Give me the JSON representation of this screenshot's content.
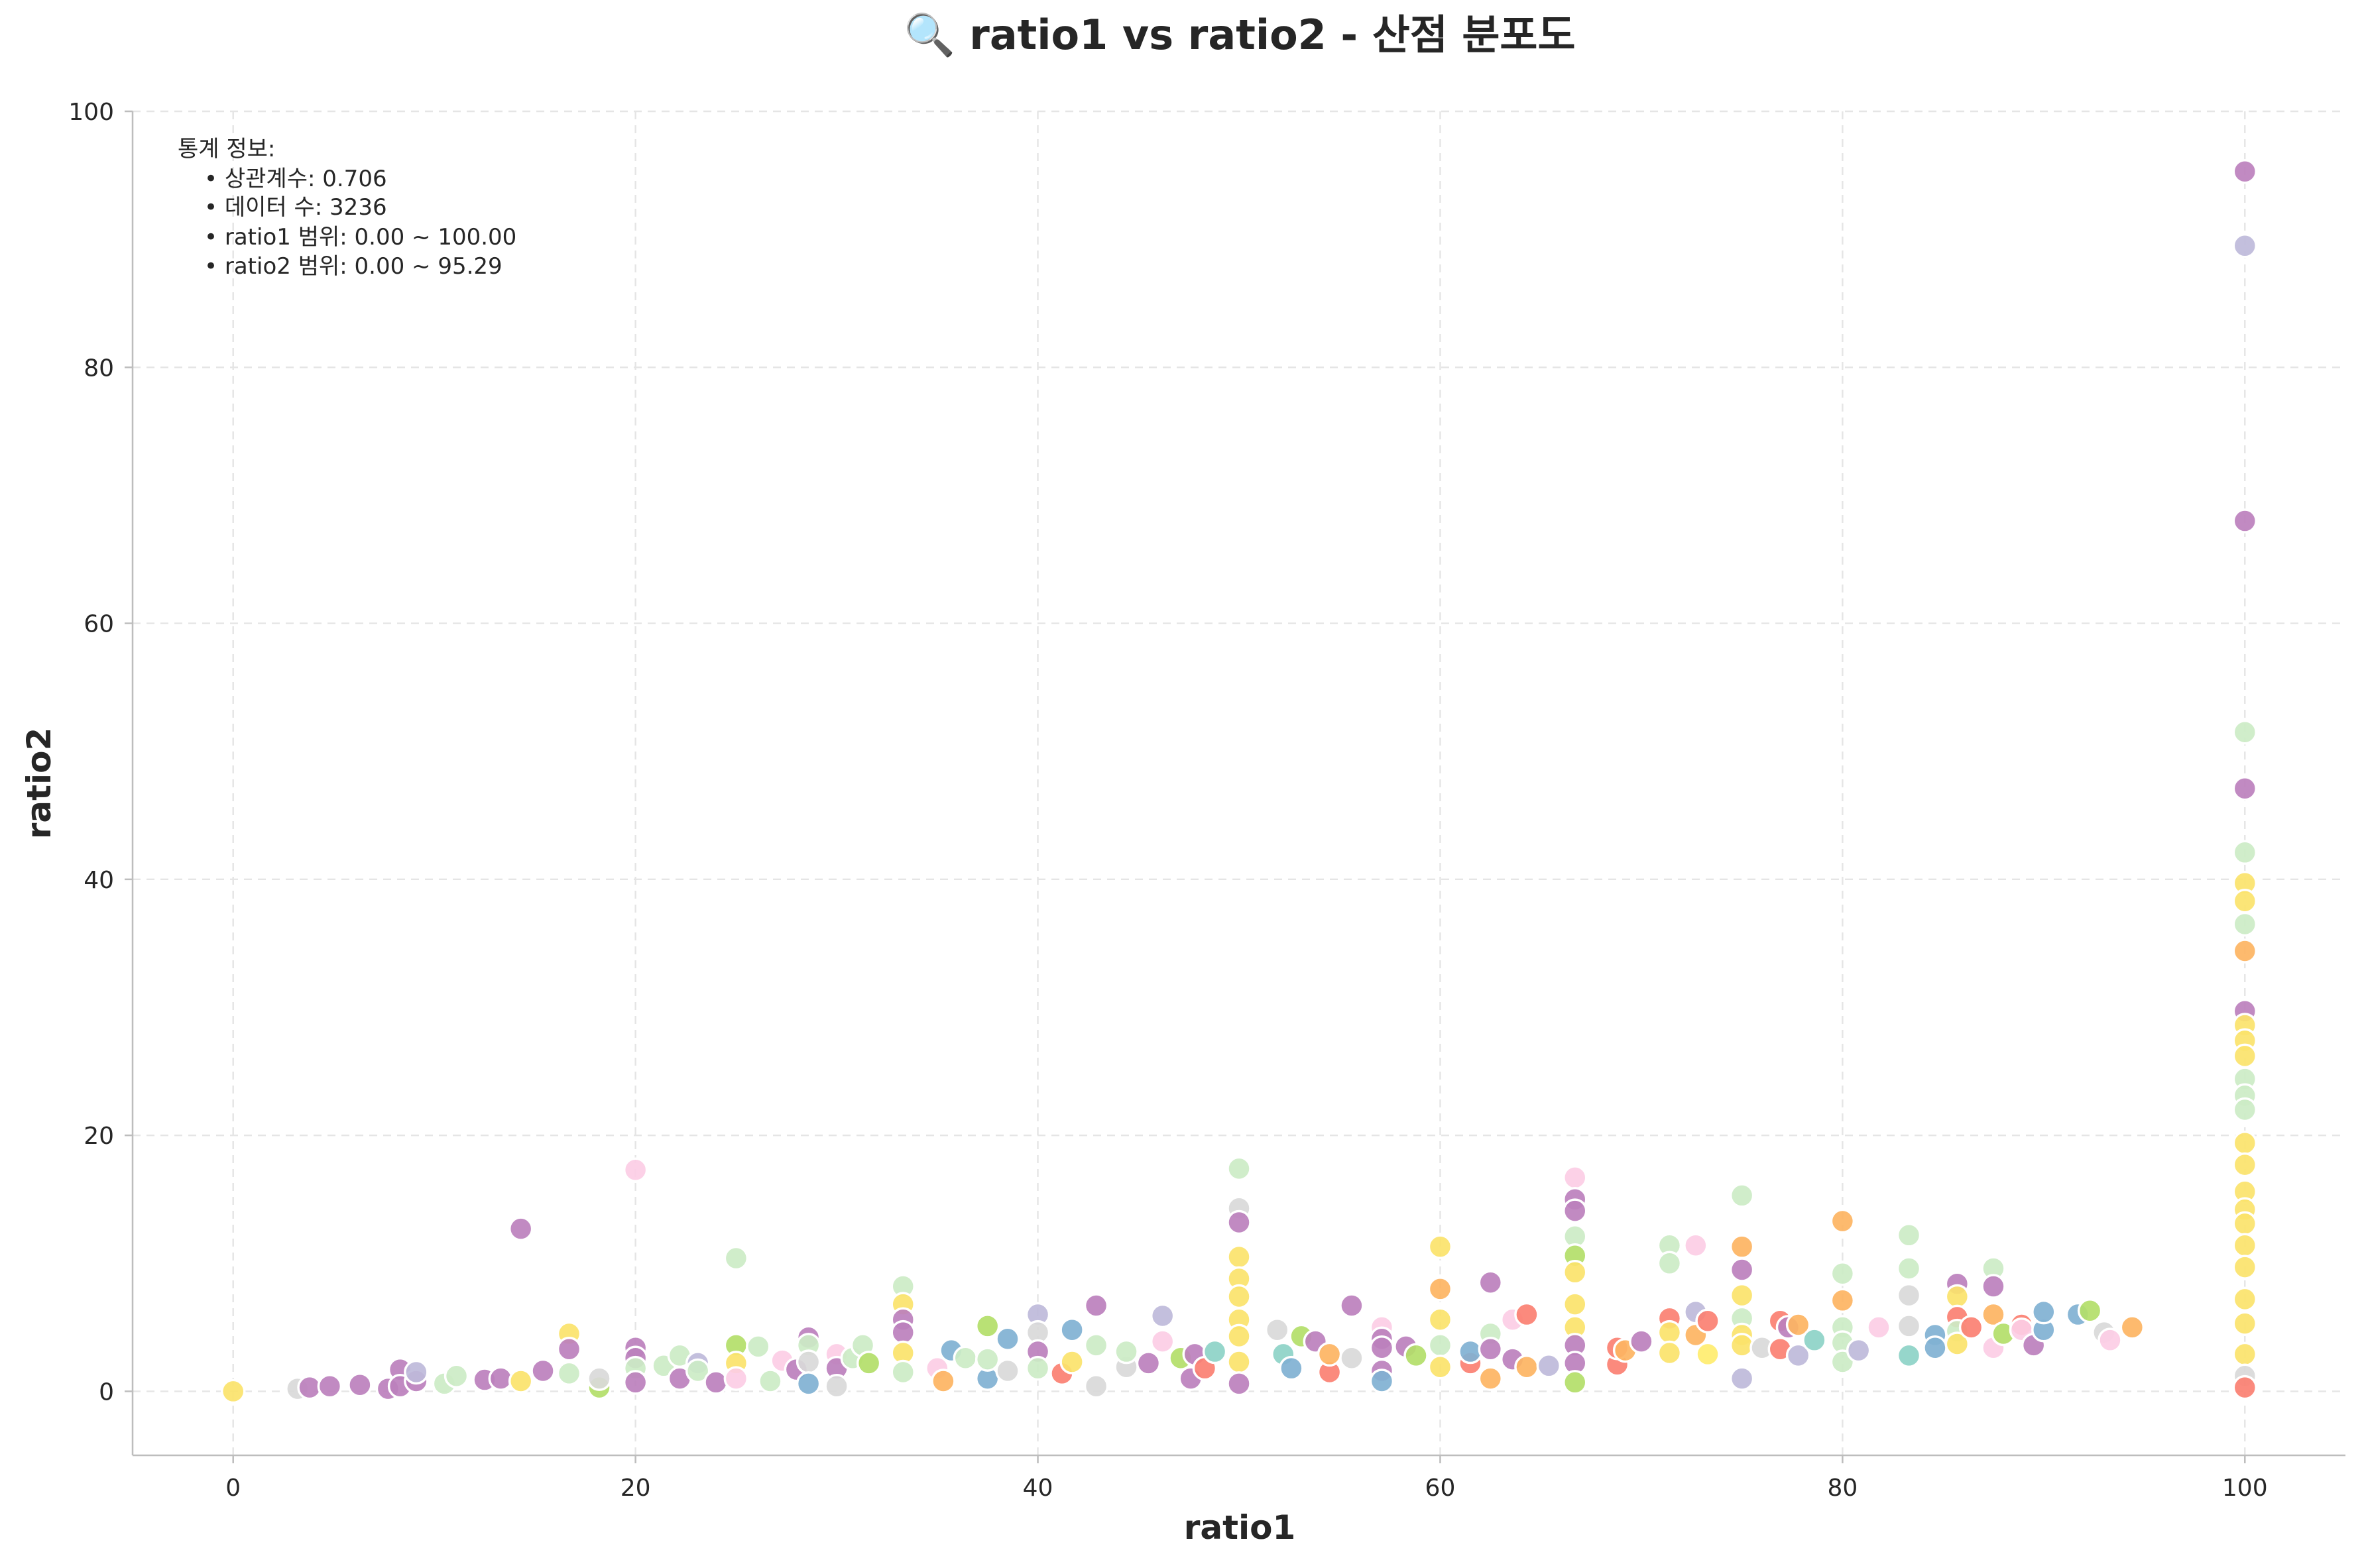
{
  "chart_data": {
    "type": "scatter",
    "title": "🔍 ratio1 vs ratio2 - 산점 분포도",
    "xlabel": "ratio1",
    "ylabel": "ratio2",
    "xlim": [
      -5,
      105
    ],
    "ylim": [
      -5,
      100
    ],
    "xticks": [
      0,
      20,
      40,
      60,
      80,
      100
    ],
    "yticks": [
      0,
      20,
      40,
      60,
      80,
      100
    ],
    "grid": true,
    "stats": {
      "heading": "통계 정보:",
      "lines": [
        "• 상관계수: 0.706",
        "• 데이터 수: 3236",
        "• ratio1 범위: 0.00 ~ 100.00",
        "• ratio2 범위: 0.00 ~ 95.29"
      ]
    },
    "palette": [
      "#8dd3c7",
      "#fbe36b",
      "#bebada",
      "#fb8072",
      "#80b1d3",
      "#fdb462",
      "#b3de69",
      "#fccde5",
      "#d9d9d9",
      "#bc80bd",
      "#ccebc5",
      "#ffed6f"
    ],
    "points": [
      {
        "x": 0,
        "y": 0,
        "color": "#fbe36b"
      },
      {
        "x": 3.2,
        "y": 0.2,
        "color": "#d9d9d9"
      },
      {
        "x": 3.8,
        "y": 0.3,
        "color": "#bc80bd"
      },
      {
        "x": 4.8,
        "y": 0.4,
        "color": "#bc80bd"
      },
      {
        "x": 6.3,
        "y": 0.5,
        "color": "#bc80bd"
      },
      {
        "x": 7.7,
        "y": 0.2,
        "color": "#bc80bd"
      },
      {
        "x": 8.3,
        "y": 1.7,
        "color": "#bc80bd"
      },
      {
        "x": 8.3,
        "y": 0.4,
        "color": "#bc80bd"
      },
      {
        "x": 9.1,
        "y": 0.8,
        "color": "#bc80bd"
      },
      {
        "x": 9.1,
        "y": 1.5,
        "color": "#bebada"
      },
      {
        "x": 10.5,
        "y": 0.6,
        "color": "#ccebc5"
      },
      {
        "x": 11.1,
        "y": 1.2,
        "color": "#ccebc5"
      },
      {
        "x": 12.5,
        "y": 0.9,
        "color": "#bc80bd"
      },
      {
        "x": 13.3,
        "y": 1.0,
        "color": "#bc80bd"
      },
      {
        "x": 14.3,
        "y": 12.7,
        "color": "#bc80bd"
      },
      {
        "x": 14.3,
        "y": 0.8,
        "color": "#fbe36b"
      },
      {
        "x": 15.4,
        "y": 1.6,
        "color": "#bc80bd"
      },
      {
        "x": 16.7,
        "y": 4.5,
        "color": "#fbe36b"
      },
      {
        "x": 16.7,
        "y": 3.3,
        "color": "#bc80bd"
      },
      {
        "x": 16.7,
        "y": 1.4,
        "color": "#ccebc5"
      },
      {
        "x": 18.2,
        "y": 0.3,
        "color": "#b3de69"
      },
      {
        "x": 18.2,
        "y": 1.0,
        "color": "#d9d9d9"
      },
      {
        "x": 20,
        "y": 17.3,
        "color": "#fccde5"
      },
      {
        "x": 20,
        "y": 3.4,
        "color": "#bc80bd"
      },
      {
        "x": 20,
        "y": 2.6,
        "color": "#bc80bd"
      },
      {
        "x": 20,
        "y": 1.8,
        "color": "#ccebc5"
      },
      {
        "x": 20,
        "y": 0.7,
        "color": "#bc80bd"
      },
      {
        "x": 21.4,
        "y": 2.0,
        "color": "#ccebc5"
      },
      {
        "x": 22.2,
        "y": 2.8,
        "color": "#ccebc5"
      },
      {
        "x": 22.2,
        "y": 1.0,
        "color": "#bc80bd"
      },
      {
        "x": 23.1,
        "y": 2.2,
        "color": "#bebada"
      },
      {
        "x": 23.1,
        "y": 1.6,
        "color": "#ccebc5"
      },
      {
        "x": 24.0,
        "y": 0.7,
        "color": "#bc80bd"
      },
      {
        "x": 25,
        "y": 10.4,
        "color": "#ccebc5"
      },
      {
        "x": 25,
        "y": 3.6,
        "color": "#b3de69"
      },
      {
        "x": 25,
        "y": 2.2,
        "color": "#fbe36b"
      },
      {
        "x": 25,
        "y": 1.0,
        "color": "#fccde5"
      },
      {
        "x": 26.1,
        "y": 3.5,
        "color": "#ccebc5"
      },
      {
        "x": 26.7,
        "y": 0.8,
        "color": "#ccebc5"
      },
      {
        "x": 27.3,
        "y": 2.4,
        "color": "#fccde5"
      },
      {
        "x": 28.0,
        "y": 1.7,
        "color": "#bc80bd"
      },
      {
        "x": 28.6,
        "y": 4.2,
        "color": "#bc80bd"
      },
      {
        "x": 28.6,
        "y": 3.6,
        "color": "#ccebc5"
      },
      {
        "x": 28.6,
        "y": 2.3,
        "color": "#d9d9d9"
      },
      {
        "x": 28.6,
        "y": 0.6,
        "color": "#80b1d3"
      },
      {
        "x": 30,
        "y": 2.9,
        "color": "#fccde5"
      },
      {
        "x": 30,
        "y": 1.8,
        "color": "#bc80bd"
      },
      {
        "x": 30,
        "y": 0.4,
        "color": "#d9d9d9"
      },
      {
        "x": 30.8,
        "y": 2.6,
        "color": "#ccebc5"
      },
      {
        "x": 31.3,
        "y": 3.6,
        "color": "#ccebc5"
      },
      {
        "x": 31.6,
        "y": 2.2,
        "color": "#b3de69"
      },
      {
        "x": 33.3,
        "y": 8.2,
        "color": "#ccebc5"
      },
      {
        "x": 33.3,
        "y": 6.8,
        "color": "#fbe36b"
      },
      {
        "x": 33.3,
        "y": 5.6,
        "color": "#bc80bd"
      },
      {
        "x": 33.3,
        "y": 4.6,
        "color": "#bc80bd"
      },
      {
        "x": 33.3,
        "y": 3.0,
        "color": "#fbe36b"
      },
      {
        "x": 33.3,
        "y": 1.5,
        "color": "#ccebc5"
      },
      {
        "x": 35.0,
        "y": 1.8,
        "color": "#fccde5"
      },
      {
        "x": 35.3,
        "y": 0.8,
        "color": "#fdb462"
      },
      {
        "x": 35.7,
        "y": 3.2,
        "color": "#80b1d3"
      },
      {
        "x": 36.4,
        "y": 2.6,
        "color": "#ccebc5"
      },
      {
        "x": 37.5,
        "y": 5.1,
        "color": "#b3de69"
      },
      {
        "x": 37.5,
        "y": 1.0,
        "color": "#80b1d3"
      },
      {
        "x": 37.5,
        "y": 2.5,
        "color": "#ccebc5"
      },
      {
        "x": 38.5,
        "y": 4.1,
        "color": "#80b1d3"
      },
      {
        "x": 38.5,
        "y": 1.6,
        "color": "#d9d9d9"
      },
      {
        "x": 40,
        "y": 6.0,
        "color": "#bebada"
      },
      {
        "x": 40,
        "y": 4.6,
        "color": "#d9d9d9"
      },
      {
        "x": 40,
        "y": 3.1,
        "color": "#bc80bd"
      },
      {
        "x": 40,
        "y": 1.8,
        "color": "#ccebc5"
      },
      {
        "x": 41.2,
        "y": 1.4,
        "color": "#fb8072"
      },
      {
        "x": 41.7,
        "y": 4.8,
        "color": "#80b1d3"
      },
      {
        "x": 41.7,
        "y": 2.3,
        "color": "#fbe36b"
      },
      {
        "x": 42.9,
        "y": 6.7,
        "color": "#bc80bd"
      },
      {
        "x": 42.9,
        "y": 3.6,
        "color": "#ccebc5"
      },
      {
        "x": 42.9,
        "y": 0.4,
        "color": "#d9d9d9"
      },
      {
        "x": 44.4,
        "y": 1.9,
        "color": "#d9d9d9"
      },
      {
        "x": 44.4,
        "y": 3.1,
        "color": "#ccebc5"
      },
      {
        "x": 45.5,
        "y": 2.2,
        "color": "#bc80bd"
      },
      {
        "x": 46.2,
        "y": 5.9,
        "color": "#bebada"
      },
      {
        "x": 46.2,
        "y": 3.9,
        "color": "#fccde5"
      },
      {
        "x": 47.1,
        "y": 2.6,
        "color": "#b3de69"
      },
      {
        "x": 47.6,
        "y": 1.0,
        "color": "#bc80bd"
      },
      {
        "x": 47.8,
        "y": 2.9,
        "color": "#bc80bd"
      },
      {
        "x": 48.3,
        "y": 1.8,
        "color": "#fb8072"
      },
      {
        "x": 48.8,
        "y": 3.1,
        "color": "#8dd3c7"
      },
      {
        "x": 50,
        "y": 17.4,
        "color": "#ccebc5"
      },
      {
        "x": 50,
        "y": 14.3,
        "color": "#d9d9d9"
      },
      {
        "x": 50,
        "y": 13.2,
        "color": "#bc80bd"
      },
      {
        "x": 50,
        "y": 10.5,
        "color": "#fbe36b"
      },
      {
        "x": 50,
        "y": 8.8,
        "color": "#fbe36b"
      },
      {
        "x": 50,
        "y": 7.4,
        "color": "#fbe36b"
      },
      {
        "x": 50,
        "y": 5.6,
        "color": "#fbe36b"
      },
      {
        "x": 50,
        "y": 4.3,
        "color": "#fbe36b"
      },
      {
        "x": 50,
        "y": 2.3,
        "color": "#fbe36b"
      },
      {
        "x": 50,
        "y": 0.6,
        "color": "#bc80bd"
      },
      {
        "x": 51.9,
        "y": 4.8,
        "color": "#d9d9d9"
      },
      {
        "x": 52.2,
        "y": 2.9,
        "color": "#8dd3c7"
      },
      {
        "x": 52.6,
        "y": 1.8,
        "color": "#80b1d3"
      },
      {
        "x": 53.1,
        "y": 4.3,
        "color": "#b3de69"
      },
      {
        "x": 53.8,
        "y": 3.9,
        "color": "#bc80bd"
      },
      {
        "x": 54.5,
        "y": 1.5,
        "color": "#fb8072"
      },
      {
        "x": 54.5,
        "y": 2.9,
        "color": "#fdb462"
      },
      {
        "x": 55.6,
        "y": 6.7,
        "color": "#bc80bd"
      },
      {
        "x": 55.6,
        "y": 2.6,
        "color": "#d9d9d9"
      },
      {
        "x": 57.1,
        "y": 5.0,
        "color": "#fccde5"
      },
      {
        "x": 57.1,
        "y": 4.1,
        "color": "#bc80bd"
      },
      {
        "x": 57.1,
        "y": 3.4,
        "color": "#bc80bd"
      },
      {
        "x": 57.1,
        "y": 1.6,
        "color": "#bc80bd"
      },
      {
        "x": 57.1,
        "y": 0.8,
        "color": "#80b1d3"
      },
      {
        "x": 58.3,
        "y": 3.5,
        "color": "#bc80bd"
      },
      {
        "x": 58.8,
        "y": 2.8,
        "color": "#b3de69"
      },
      {
        "x": 60,
        "y": 11.3,
        "color": "#fbe36b"
      },
      {
        "x": 60,
        "y": 8.0,
        "color": "#fdb462"
      },
      {
        "x": 60,
        "y": 5.6,
        "color": "#fbe36b"
      },
      {
        "x": 60,
        "y": 3.6,
        "color": "#ccebc5"
      },
      {
        "x": 60,
        "y": 1.9,
        "color": "#fbe36b"
      },
      {
        "x": 61.5,
        "y": 2.2,
        "color": "#fb8072"
      },
      {
        "x": 61.5,
        "y": 3.1,
        "color": "#80b1d3"
      },
      {
        "x": 62.5,
        "y": 8.5,
        "color": "#bc80bd"
      },
      {
        "x": 62.5,
        "y": 4.5,
        "color": "#ccebc5"
      },
      {
        "x": 62.5,
        "y": 3.3,
        "color": "#bc80bd"
      },
      {
        "x": 62.5,
        "y": 1.0,
        "color": "#fdb462"
      },
      {
        "x": 63.6,
        "y": 5.6,
        "color": "#fccde5"
      },
      {
        "x": 63.6,
        "y": 2.5,
        "color": "#bc80bd"
      },
      {
        "x": 64.3,
        "y": 6.0,
        "color": "#fb8072"
      },
      {
        "x": 64.3,
        "y": 1.9,
        "color": "#fdb462"
      },
      {
        "x": 65.4,
        "y": 2.0,
        "color": "#bebada"
      },
      {
        "x": 66.7,
        "y": 16.7,
        "color": "#fccde5"
      },
      {
        "x": 66.7,
        "y": 15.0,
        "color": "#bc80bd"
      },
      {
        "x": 66.7,
        "y": 14.1,
        "color": "#bc80bd"
      },
      {
        "x": 66.7,
        "y": 12.1,
        "color": "#ccebc5"
      },
      {
        "x": 66.7,
        "y": 10.6,
        "color": "#b3de69"
      },
      {
        "x": 66.7,
        "y": 9.3,
        "color": "#fbe36b"
      },
      {
        "x": 66.7,
        "y": 6.8,
        "color": "#fbe36b"
      },
      {
        "x": 66.7,
        "y": 5.0,
        "color": "#fbe36b"
      },
      {
        "x": 66.7,
        "y": 3.6,
        "color": "#bc80bd"
      },
      {
        "x": 66.7,
        "y": 2.2,
        "color": "#bc80bd"
      },
      {
        "x": 66.7,
        "y": 0.7,
        "color": "#b3de69"
      },
      {
        "x": 68.8,
        "y": 2.1,
        "color": "#fb8072"
      },
      {
        "x": 68.8,
        "y": 3.4,
        "color": "#fb8072"
      },
      {
        "x": 69.2,
        "y": 3.2,
        "color": "#fdb462"
      },
      {
        "x": 70,
        "y": 3.9,
        "color": "#bc80bd"
      },
      {
        "x": 71.4,
        "y": 11.4,
        "color": "#ccebc5"
      },
      {
        "x": 71.4,
        "y": 10.0,
        "color": "#ccebc5"
      },
      {
        "x": 71.4,
        "y": 5.7,
        "color": "#fb8072"
      },
      {
        "x": 71.4,
        "y": 4.6,
        "color": "#fbe36b"
      },
      {
        "x": 71.4,
        "y": 3.0,
        "color": "#fbe36b"
      },
      {
        "x": 72.7,
        "y": 11.4,
        "color": "#fccde5"
      },
      {
        "x": 72.7,
        "y": 6.2,
        "color": "#bebada"
      },
      {
        "x": 72.7,
        "y": 4.4,
        "color": "#fdb462"
      },
      {
        "x": 73.3,
        "y": 5.5,
        "color": "#fb8072"
      },
      {
        "x": 73.3,
        "y": 2.9,
        "color": "#ffed6f"
      },
      {
        "x": 75,
        "y": 15.3,
        "color": "#ccebc5"
      },
      {
        "x": 75,
        "y": 11.3,
        "color": "#fdb462"
      },
      {
        "x": 75,
        "y": 9.5,
        "color": "#bc80bd"
      },
      {
        "x": 75,
        "y": 7.5,
        "color": "#fbe36b"
      },
      {
        "x": 75,
        "y": 5.7,
        "color": "#ccebc5"
      },
      {
        "x": 75,
        "y": 4.4,
        "color": "#fbe36b"
      },
      {
        "x": 75,
        "y": 3.6,
        "color": "#fbe36b"
      },
      {
        "x": 75,
        "y": 1.0,
        "color": "#bebada"
      },
      {
        "x": 76.0,
        "y": 3.4,
        "color": "#d9d9d9"
      },
      {
        "x": 76.9,
        "y": 5.5,
        "color": "#fb8072"
      },
      {
        "x": 76.9,
        "y": 3.3,
        "color": "#fb8072"
      },
      {
        "x": 77.3,
        "y": 5.0,
        "color": "#bc80bd"
      },
      {
        "x": 77.8,
        "y": 2.8,
        "color": "#bebada"
      },
      {
        "x": 77.8,
        "y": 5.2,
        "color": "#fdb462"
      },
      {
        "x": 78.6,
        "y": 4.0,
        "color": "#8dd3c7"
      },
      {
        "x": 80,
        "y": 13.3,
        "color": "#fdb462"
      },
      {
        "x": 80,
        "y": 9.2,
        "color": "#ccebc5"
      },
      {
        "x": 80,
        "y": 7.1,
        "color": "#fdb462"
      },
      {
        "x": 80,
        "y": 5.0,
        "color": "#ccebc5"
      },
      {
        "x": 80,
        "y": 3.8,
        "color": "#ccebc5"
      },
      {
        "x": 80,
        "y": 2.3,
        "color": "#ccebc5"
      },
      {
        "x": 80.8,
        "y": 3.2,
        "color": "#bebada"
      },
      {
        "x": 81.8,
        "y": 5.0,
        "color": "#fccde5"
      },
      {
        "x": 83.3,
        "y": 12.2,
        "color": "#ccebc5"
      },
      {
        "x": 83.3,
        "y": 9.6,
        "color": "#ccebc5"
      },
      {
        "x": 83.3,
        "y": 7.5,
        "color": "#d9d9d9"
      },
      {
        "x": 83.3,
        "y": 5.1,
        "color": "#d9d9d9"
      },
      {
        "x": 83.3,
        "y": 2.8,
        "color": "#8dd3c7"
      },
      {
        "x": 84.6,
        "y": 4.4,
        "color": "#80b1d3"
      },
      {
        "x": 84.6,
        "y": 3.4,
        "color": "#80b1d3"
      },
      {
        "x": 85.7,
        "y": 8.4,
        "color": "#bc80bd"
      },
      {
        "x": 85.7,
        "y": 7.4,
        "color": "#fbe36b"
      },
      {
        "x": 85.7,
        "y": 5.8,
        "color": "#fb8072"
      },
      {
        "x": 85.7,
        "y": 4.7,
        "color": "#ccebc5"
      },
      {
        "x": 85.7,
        "y": 3.7,
        "color": "#fbe36b"
      },
      {
        "x": 86.4,
        "y": 5.0,
        "color": "#fb8072"
      },
      {
        "x": 87.5,
        "y": 9.6,
        "color": "#ccebc5"
      },
      {
        "x": 87.5,
        "y": 8.2,
        "color": "#bc80bd"
      },
      {
        "x": 87.5,
        "y": 6.0,
        "color": "#fdb462"
      },
      {
        "x": 87.5,
        "y": 3.4,
        "color": "#fccde5"
      },
      {
        "x": 88.0,
        "y": 4.5,
        "color": "#b3de69"
      },
      {
        "x": 88.9,
        "y": 5.2,
        "color": "#fb8072"
      },
      {
        "x": 88.9,
        "y": 4.8,
        "color": "#fccde5"
      },
      {
        "x": 89.5,
        "y": 3.6,
        "color": "#bc80bd"
      },
      {
        "x": 90.0,
        "y": 4.8,
        "color": "#80b1d3"
      },
      {
        "x": 90.0,
        "y": 6.2,
        "color": "#80b1d3"
      },
      {
        "x": 91.7,
        "y": 6.0,
        "color": "#80b1d3"
      },
      {
        "x": 92.3,
        "y": 6.3,
        "color": "#b3de69"
      },
      {
        "x": 93.0,
        "y": 4.6,
        "color": "#d9d9d9"
      },
      {
        "x": 93.3,
        "y": 4.0,
        "color": "#fccde5"
      },
      {
        "x": 94.4,
        "y": 5.0,
        "color": "#fdb462"
      },
      {
        "x": 100,
        "y": 95.3,
        "color": "#bc80bd"
      },
      {
        "x": 100,
        "y": 89.5,
        "color": "#bebada"
      },
      {
        "x": 100,
        "y": 68.0,
        "color": "#bc80bd"
      },
      {
        "x": 100,
        "y": 51.5,
        "color": "#ccebc5"
      },
      {
        "x": 100,
        "y": 47.1,
        "color": "#bc80bd"
      },
      {
        "x": 100,
        "y": 42.1,
        "color": "#ccebc5"
      },
      {
        "x": 100,
        "y": 39.7,
        "color": "#fbe36b"
      },
      {
        "x": 100,
        "y": 38.3,
        "color": "#fbe36b"
      },
      {
        "x": 100,
        "y": 36.5,
        "color": "#ccebc5"
      },
      {
        "x": 100,
        "y": 34.4,
        "color": "#fdb462"
      },
      {
        "x": 100,
        "y": 29.7,
        "color": "#bc80bd"
      },
      {
        "x": 100,
        "y": 28.6,
        "color": "#fbe36b"
      },
      {
        "x": 100,
        "y": 27.4,
        "color": "#fbe36b"
      },
      {
        "x": 100,
        "y": 26.2,
        "color": "#fbe36b"
      },
      {
        "x": 100,
        "y": 24.4,
        "color": "#ccebc5"
      },
      {
        "x": 100,
        "y": 23.1,
        "color": "#ccebc5"
      },
      {
        "x": 100,
        "y": 22.0,
        "color": "#ccebc5"
      },
      {
        "x": 100,
        "y": 19.4,
        "color": "#fbe36b"
      },
      {
        "x": 100,
        "y": 17.7,
        "color": "#fbe36b"
      },
      {
        "x": 100,
        "y": 15.6,
        "color": "#fbe36b"
      },
      {
        "x": 100,
        "y": 14.2,
        "color": "#fbe36b"
      },
      {
        "x": 100,
        "y": 13.1,
        "color": "#fbe36b"
      },
      {
        "x": 100,
        "y": 11.4,
        "color": "#fbe36b"
      },
      {
        "x": 100,
        "y": 9.7,
        "color": "#fbe36b"
      },
      {
        "x": 100,
        "y": 7.2,
        "color": "#fbe36b"
      },
      {
        "x": 100,
        "y": 5.3,
        "color": "#fbe36b"
      },
      {
        "x": 100,
        "y": 2.9,
        "color": "#fbe36b"
      },
      {
        "x": 100,
        "y": 1.2,
        "color": "#d9d9d9"
      },
      {
        "x": 100,
        "y": 0.3,
        "color": "#fb8072"
      }
    ]
  }
}
